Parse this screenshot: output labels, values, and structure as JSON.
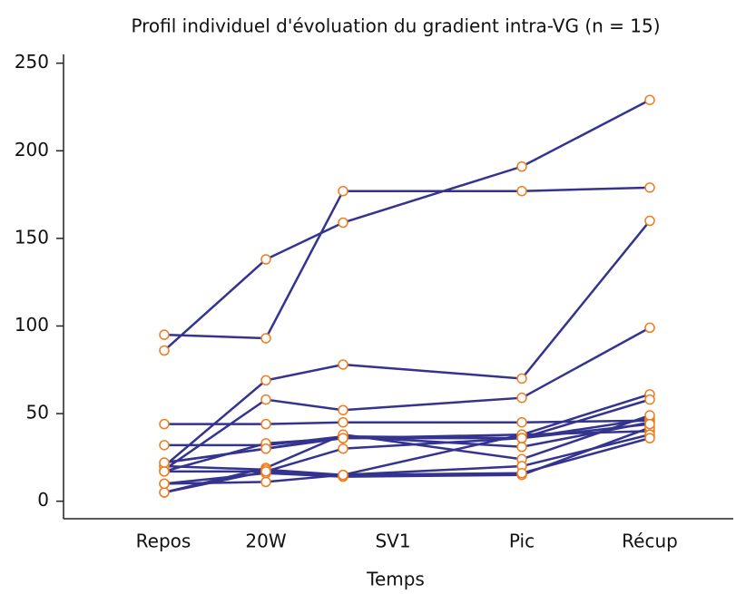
{
  "chart_data": {
    "type": "line",
    "title": "Profil individuel d'évoluation du gradient intra-VG (n = 15)",
    "xlabel": "Temps",
    "categories": [
      "Repos",
      "20W",
      "SV1",
      "Pic",
      "Récup"
    ],
    "line_color": "#34338f",
    "marker_color": "#f07c1e",
    "ylim": [
      -10,
      255
    ],
    "yticks": [
      0,
      50,
      100,
      150,
      200,
      250
    ],
    "series": [
      {
        "values": [
          86,
          138,
          159,
          191,
          229
        ]
      },
      {
        "values": [
          95,
          93,
          177,
          177,
          179
        ]
      },
      {
        "values": [
          20,
          69,
          78,
          70,
          160
        ]
      },
      {
        "values": [
          18,
          58,
          52,
          59,
          99
        ]
      },
      {
        "values": [
          44,
          44,
          45,
          45,
          46
        ]
      },
      {
        "values": [
          32,
          32,
          37,
          36,
          47
        ]
      },
      {
        "values": [
          22,
          30,
          37,
          31,
          45
        ]
      },
      {
        "values": [
          17,
          33,
          36,
          38,
          40
        ]
      },
      {
        "values": [
          10,
          11,
          15,
          38,
          61
        ]
      },
      {
        "values": [
          5,
          17,
          30,
          36,
          58
        ]
      },
      {
        "values": [
          5,
          19,
          38,
          24,
          49
        ]
      },
      {
        "values": [
          10,
          16,
          14,
          15,
          42
        ]
      },
      {
        "values": [
          20,
          18,
          15,
          20,
          38
        ]
      },
      {
        "values": [
          17,
          17,
          15,
          16,
          36
        ]
      },
      {
        "values": [
          22,
          30,
          36,
          36,
          44
        ]
      }
    ]
  }
}
